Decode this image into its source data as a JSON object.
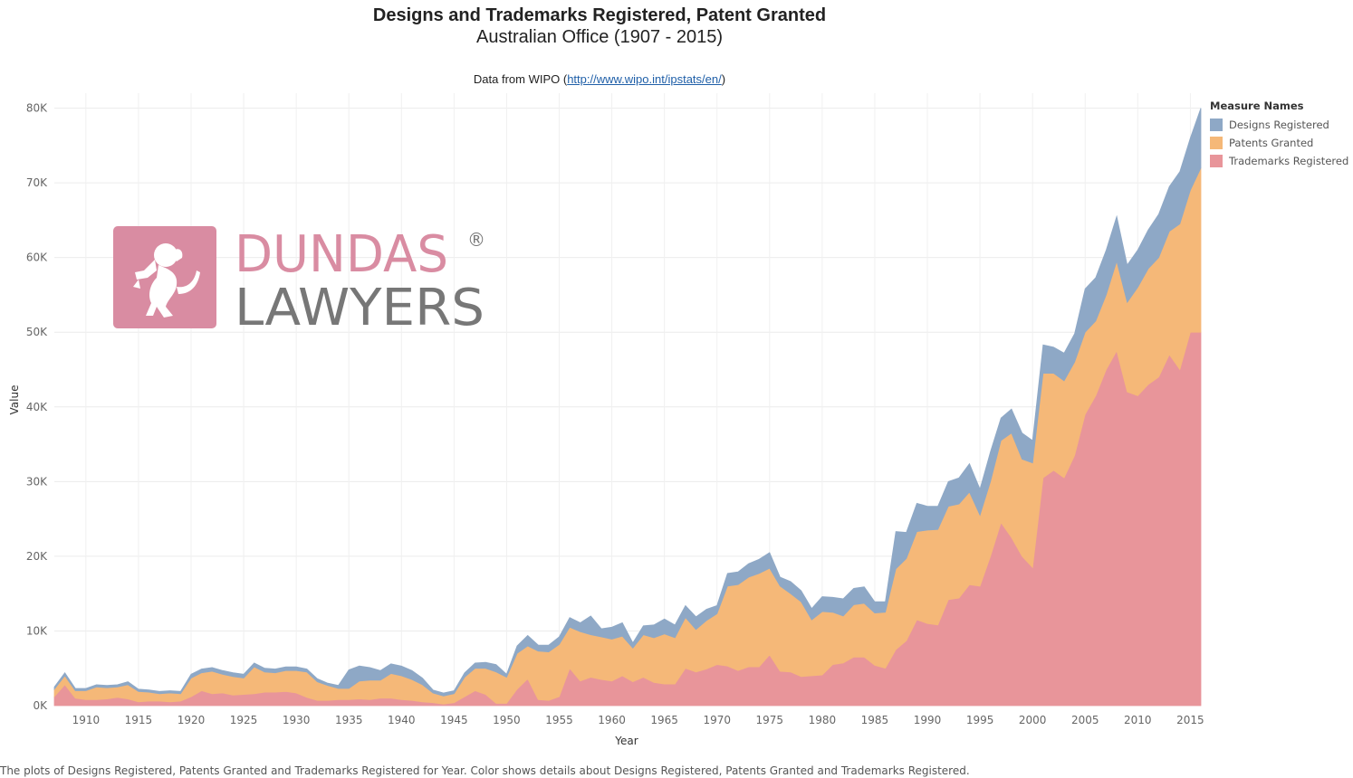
{
  "chart_data": {
    "type": "area",
    "stacked": true,
    "title": "Designs and Trademarks Registered, Patent Granted",
    "subtitle": "Australian Office (1907 - 2015)",
    "source_prefix": "Data from WIPO (",
    "source_link": "http://www.wipo.int/ipstats/en/",
    "source_suffix": ")",
    "xlabel": "Year",
    "ylabel": "Value",
    "xlim": [
      1907,
      2016
    ],
    "ylim": [
      0,
      82000
    ],
    "x_ticks": [
      1910,
      1915,
      1920,
      1925,
      1930,
      1935,
      1940,
      1945,
      1950,
      1955,
      1960,
      1965,
      1970,
      1975,
      1980,
      1985,
      1990,
      1995,
      2000,
      2005,
      2010,
      2015
    ],
    "x_tick_labels": [
      "1910",
      "1915",
      "1920",
      "1925",
      "1930",
      "1935",
      "1940",
      "1945",
      "1950",
      "1955",
      "1960",
      "1965",
      "1970",
      "1975",
      "1980",
      "1985",
      "1990",
      "1995",
      "2000",
      "2005",
      "2010",
      "2015"
    ],
    "y_ticks": [
      0,
      10000,
      20000,
      30000,
      40000,
      50000,
      60000,
      70000,
      80000
    ],
    "y_tick_labels": [
      "0K",
      "10K",
      "20K",
      "30K",
      "40K",
      "50K",
      "60K",
      "70K",
      "80K"
    ],
    "grid": true,
    "legend_title": "Measure Names",
    "legend_position": "top-right",
    "x": [
      1907,
      1908,
      1909,
      1910,
      1911,
      1912,
      1913,
      1914,
      1915,
      1916,
      1917,
      1918,
      1919,
      1920,
      1921,
      1922,
      1923,
      1924,
      1925,
      1926,
      1927,
      1928,
      1929,
      1930,
      1931,
      1932,
      1933,
      1934,
      1935,
      1936,
      1937,
      1938,
      1939,
      1940,
      1941,
      1942,
      1943,
      1944,
      1945,
      1946,
      1947,
      1948,
      1949,
      1950,
      1951,
      1952,
      1953,
      1954,
      1955,
      1956,
      1957,
      1958,
      1959,
      1960,
      1961,
      1962,
      1963,
      1964,
      1965,
      1966,
      1967,
      1968,
      1969,
      1970,
      1971,
      1972,
      1973,
      1974,
      1975,
      1976,
      1977,
      1978,
      1979,
      1980,
      1981,
      1982,
      1983,
      1984,
      1985,
      1986,
      1987,
      1988,
      1989,
      1990,
      1991,
      1992,
      1993,
      1994,
      1995,
      1996,
      1997,
      1998,
      1999,
      2000,
      2001,
      2002,
      2003,
      2004,
      2005,
      2006,
      2007,
      2008,
      2009,
      2010,
      2011,
      2012,
      2013,
      2014,
      2015,
      2016
    ],
    "series": [
      {
        "name": "Trademarks Registered",
        "color": "#e8959a",
        "values": [
          1200,
          2800,
          1000,
          800,
          800,
          900,
          1100,
          900,
          500,
          600,
          600,
          500,
          600,
          1200,
          2000,
          1600,
          1700,
          1400,
          1500,
          1600,
          1800,
          1800,
          1900,
          1700,
          1100,
          700,
          700,
          800,
          800,
          900,
          800,
          1000,
          1000,
          800,
          700,
          500,
          400,
          200,
          400,
          1200,
          2000,
          1500,
          300,
          300,
          2200,
          3600,
          800,
          700,
          1200,
          5000,
          3300,
          3800,
          3500,
          3300,
          4000,
          3200,
          3800,
          3100,
          2900,
          2900,
          5000,
          4500,
          4900,
          5500,
          5300,
          4700,
          5200,
          5200,
          6800,
          4600,
          4500,
          3900,
          4000,
          4100,
          5500,
          5700,
          6500,
          6500,
          5400,
          5000,
          7500,
          8700,
          11500,
          11000,
          10800,
          14200,
          14400,
          16200,
          16000,
          20000,
          24500,
          22500,
          20000,
          18500,
          30500,
          31500,
          30500,
          33500,
          39000,
          41500,
          45000,
          47500,
          42000,
          41500,
          43000,
          44000,
          47000,
          45000,
          50000,
          50000
        ]
      },
      {
        "name": "Patents Granted",
        "color": "#f5b878",
        "values": [
          1000,
          1200,
          1000,
          1200,
          1700,
          1500,
          1400,
          1900,
          1400,
          1200,
          1000,
          1200,
          1000,
          2500,
          2400,
          3000,
          2500,
          2500,
          2200,
          3600,
          2700,
          2600,
          2800,
          3000,
          3400,
          2500,
          2000,
          1500,
          1500,
          2400,
          2600,
          2400,
          3300,
          3200,
          2800,
          2300,
          1300,
          1100,
          1200,
          2600,
          3000,
          3500,
          4200,
          3500,
          4800,
          4400,
          6500,
          6500,
          7000,
          5500,
          6600,
          5700,
          5700,
          5600,
          5300,
          4500,
          5700,
          6000,
          6700,
          6200,
          6800,
          5700,
          6500,
          6800,
          10700,
          11500,
          12000,
          12500,
          11600,
          11400,
          10500,
          10000,
          7500,
          8500,
          7000,
          6300,
          7000,
          7200,
          7000,
          7500,
          10800,
          11000,
          11800,
          12500,
          12800,
          12500,
          12600,
          12400,
          9500,
          10000,
          11000,
          14000,
          13000,
          14000,
          14000,
          13000,
          13000,
          12500,
          11000,
          10000,
          10000,
          12000,
          12000,
          14500,
          15500,
          16000,
          16500,
          19500,
          19000,
          22000
        ]
      },
      {
        "name": "Designs Registered",
        "color": "#8ea8c6",
        "values": [
          300,
          400,
          300,
          300,
          300,
          300,
          300,
          400,
          300,
          300,
          300,
          300,
          300,
          500,
          500,
          500,
          500,
          500,
          500,
          500,
          500,
          500,
          500,
          500,
          400,
          400,
          300,
          400,
          2500,
          2000,
          1700,
          1300,
          1300,
          1300,
          1200,
          900,
          400,
          400,
          400,
          600,
          700,
          800,
          1000,
          400,
          1000,
          1400,
          800,
          900,
          1000,
          1300,
          1200,
          2500,
          1100,
          1600,
          1800,
          700,
          1200,
          1700,
          2000,
          1700,
          1600,
          1700,
          1500,
          1100,
          1700,
          1700,
          1800,
          1900,
          2100,
          1200,
          1600,
          1500,
          1500,
          2000,
          2000,
          2300,
          2200,
          2200,
          1500,
          1400,
          5000,
          3500,
          3800,
          3200,
          3100,
          3300,
          3500,
          3800,
          3500,
          4000,
          3000,
          3200,
          3500,
          3000,
          3800,
          3500,
          3700,
          3800,
          5800,
          5800,
          6000,
          6000,
          5000,
          5000,
          5200,
          5800,
          6000,
          7000,
          7000,
          8000
        ]
      }
    ]
  },
  "caption": "The plots of Designs Registered, Patents Granted and Trademarks Registered for Year.  Color shows details about Designs Registered, Patents Granted and Trademarks Registered.",
  "logo": {
    "line1": "DUNDAS",
    "line2": "LAWYERS",
    "registered_mark": "®",
    "pink": "#d98ca2",
    "gray": "#777777"
  }
}
